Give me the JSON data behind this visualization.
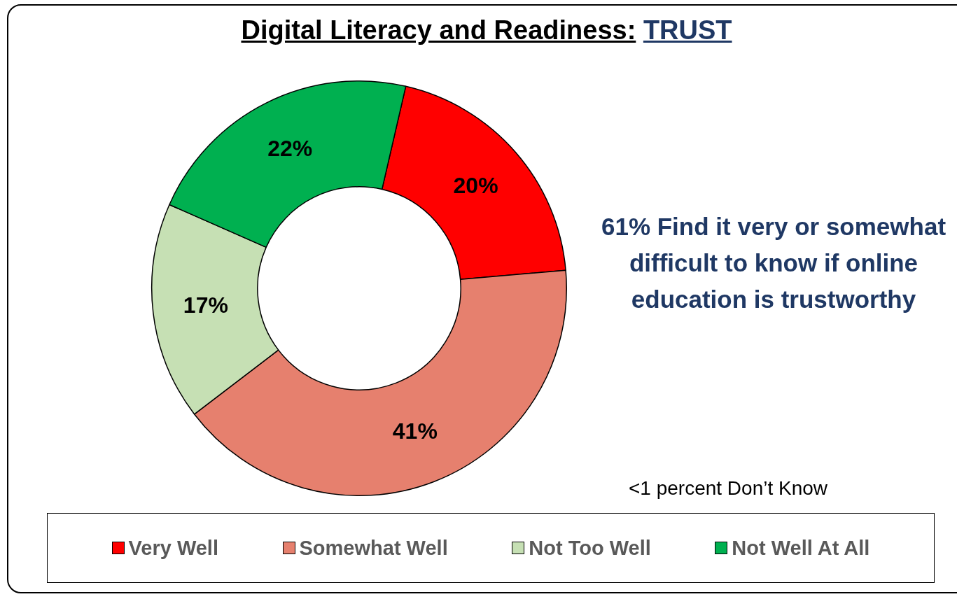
{
  "chart_data": {
    "type": "donut",
    "title": "Digital Literacy and Readiness:",
    "subtitle": "TRUST",
    "categories": [
      "Very Well",
      "Somewhat Well",
      "Not Too Well",
      "Not Well At All"
    ],
    "values": [
      20,
      41,
      17,
      22
    ],
    "colors": [
      "#ff0000",
      "#e6806e",
      "#c6e0b4",
      "#00b050"
    ],
    "value_labels": [
      "20%",
      "41%",
      "17%",
      "22%"
    ],
    "legend": "bottom",
    "annotations": [
      "61% Find it very or somewhat difficult to know if online education is trustworthy",
      "<1 percent Don’t Know"
    ]
  }
}
